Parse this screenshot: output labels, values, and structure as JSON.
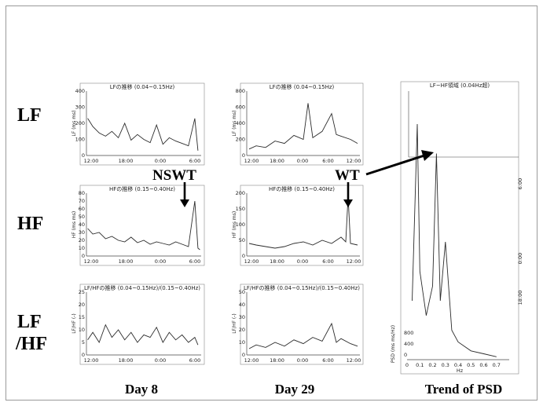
{
  "row_labels": {
    "lf": "LF",
    "hf": "HF",
    "lfhf_line1": "LF",
    "lfhf_line2": "/HF"
  },
  "column_labels": {
    "day8": "Day 8",
    "day29": "Day 29",
    "psd": "Trend of PSD"
  },
  "annotations": {
    "nswt": "NSWT",
    "wt": "WT"
  },
  "colors": {
    "trace": "#2b2b2b",
    "axis": "#444444",
    "arrow": "#000000"
  },
  "chart_data": [
    {
      "id": "day8_lf",
      "type": "line",
      "title": "LFの推移 (0.04~0.15Hz)",
      "ylabel": "LF (ms ms)",
      "ylim": [
        0,
        400
      ],
      "yticks": [
        "0",
        "100",
        "200",
        "300",
        "400"
      ],
      "xticks": [
        "12:00",
        "18:00",
        "0:00",
        "6:00"
      ],
      "xlim": [
        0,
        18
      ],
      "x": [
        0.2,
        1,
        2,
        3,
        4,
        5,
        6,
        7,
        8,
        9,
        10,
        11,
        12,
        13,
        14,
        15,
        16,
        17,
        17.5
      ],
      "y": [
        230,
        180,
        140,
        120,
        150,
        110,
        200,
        95,
        130,
        100,
        80,
        190,
        70,
        110,
        90,
        75,
        60,
        230,
        30
      ]
    },
    {
      "id": "day8_hf",
      "type": "line",
      "title": "HFの推移 (0.15~0.40Hz)",
      "ylabel": "HF (ms ms)",
      "ylim": [
        0,
        80
      ],
      "yticks": [
        "0",
        "10",
        "20",
        "30",
        "40",
        "50",
        "60",
        "70",
        "80"
      ],
      "xticks": [
        "12:00",
        "18:00",
        "0:00",
        "6:00"
      ],
      "xlim": [
        0,
        18
      ],
      "x": [
        0.2,
        1,
        2,
        3,
        4,
        5,
        6,
        7,
        8,
        9,
        10,
        11,
        12,
        13,
        14,
        15,
        16,
        17,
        17.5,
        17.8
      ],
      "y": [
        35,
        28,
        30,
        22,
        25,
        20,
        18,
        24,
        17,
        20,
        15,
        18,
        16,
        14,
        18,
        15,
        12,
        70,
        10,
        8
      ]
    },
    {
      "id": "day8_lfhf",
      "type": "line",
      "title": "LF/HFの推移 (0.04~0.15Hz)/(0.15~0.40Hz)",
      "ylabel": "LF/HF (-)",
      "ylim": [
        0,
        25
      ],
      "yticks": [
        "0",
        "5",
        "10",
        "15",
        "20",
        "25"
      ],
      "xticks": [
        "12:00",
        "18:00",
        "0:00",
        "6:00"
      ],
      "xlim": [
        0,
        18
      ],
      "x": [
        0.2,
        1,
        2,
        3,
        4,
        5,
        6,
        7,
        8,
        9,
        10,
        11,
        12,
        13,
        14,
        15,
        16,
        17,
        17.5
      ],
      "y": [
        6,
        9,
        5,
        12,
        7,
        10,
        6,
        9,
        5,
        8,
        7,
        11,
        5,
        9,
        6,
        8,
        5,
        7,
        4
      ]
    },
    {
      "id": "day29_lf",
      "type": "line",
      "title": "LFの推移 (0.04~0.15Hz)",
      "ylabel": "LF (ms ms)",
      "ylim": [
        0,
        800
      ],
      "yticks": [
        "0",
        "200",
        "400",
        "600",
        "800"
      ],
      "xticks": [
        "12:00",
        "18:00",
        "0:00",
        "6:00",
        "12:00"
      ],
      "xlim": [
        0,
        24
      ],
      "x": [
        0.5,
        2,
        4,
        6,
        8,
        10,
        12,
        13,
        14,
        16,
        18,
        19,
        20,
        22,
        23.5
      ],
      "y": [
        80,
        120,
        100,
        180,
        150,
        250,
        200,
        650,
        220,
        300,
        520,
        260,
        240,
        200,
        150
      ]
    },
    {
      "id": "day29_hf",
      "type": "line",
      "title": "HFの推移 (0.15~0.40Hz)",
      "ylabel": "HF (ms ms)",
      "ylim": [
        0,
        200
      ],
      "yticks": [
        "0",
        "50",
        "100",
        "150",
        "200"
      ],
      "xticks": [
        "12:00",
        "18:00",
        "0:00",
        "6:00",
        "12:00"
      ],
      "xlim": [
        0,
        24
      ],
      "x": [
        0.5,
        2,
        4,
        6,
        8,
        10,
        12,
        14,
        16,
        18,
        20,
        21,
        21.5,
        22,
        23.5
      ],
      "y": [
        40,
        35,
        30,
        25,
        30,
        40,
        45,
        35,
        50,
        40,
        60,
        45,
        190,
        40,
        35
      ]
    },
    {
      "id": "day29_lfhf",
      "type": "line",
      "title": "LF/HFの推移 (0.04~0.15Hz)/(0.15~0.40Hz)",
      "ylabel": "LF/HF (-)",
      "ylim": [
        0,
        50
      ],
      "yticks": [
        "0",
        "10",
        "20",
        "30",
        "40",
        "50"
      ],
      "xticks": [
        "12:00",
        "18:00",
        "0:00",
        "6:00",
        "12:00"
      ],
      "xlim": [
        0,
        24
      ],
      "x": [
        0.5,
        2,
        4,
        6,
        8,
        10,
        12,
        14,
        16,
        18,
        19,
        20,
        22,
        23.5
      ],
      "y": [
        5,
        8,
        6,
        10,
        7,
        12,
        9,
        14,
        11,
        25,
        10,
        13,
        9,
        7
      ]
    },
    {
      "id": "psd_trend",
      "type": "line",
      "title": "LF~HF領域 (0.04Hz超)",
      "ylabel": "PSD (ms ms/Hz)",
      "xlabel": "Hz",
      "xlim": [
        0,
        0.8
      ],
      "xticks": [
        "0",
        "0.1",
        "0.2",
        "0.3",
        "0.4",
        "0.5",
        "0.6",
        "0.7"
      ],
      "yticks": [
        "0",
        "400",
        "800"
      ],
      "timeticks": [
        "6:00",
        "0:00",
        "18:00"
      ],
      "freq": [
        0.04,
        0.08,
        0.1,
        0.15,
        0.2,
        0.23,
        0.26,
        0.3,
        0.35,
        0.4,
        0.5,
        0.6,
        0.7
      ],
      "front_spectrum": [
        200,
        800,
        300,
        150,
        250,
        700,
        200,
        400,
        100,
        60,
        30,
        20,
        10
      ]
    }
  ]
}
